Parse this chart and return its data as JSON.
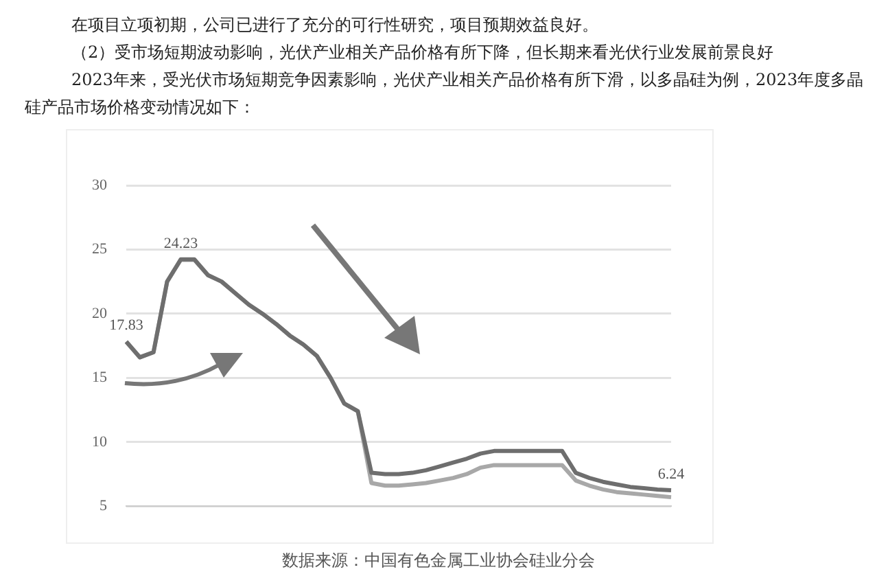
{
  "chart_data": {
    "type": "line",
    "annotations": [
      "在项目立项初期，公司已进行了充分的可行性研究，项目预期效益良好。",
      "（2）受市场短期波动影响，光伏产业相关产品价格有所下降，但长期来看光伏行业发展前景良好",
      "2023年来，受光伏市场短期竞争因素影响，光伏产业相关产品价格有所下滑，以多晶硅为例，2023年度多晶硅产品市场价格变动情况如下：",
      "数据来源：中国有色金属工业协会硅业分会"
    ],
    "categories": [
      null,
      null,
      null,
      null,
      null,
      null,
      null,
      null,
      null,
      null,
      null,
      null,
      null,
      null,
      null,
      null,
      null,
      null,
      null,
      null,
      null,
      null,
      null,
      null,
      null,
      null,
      null,
      null,
      null,
      null,
      null,
      null,
      null,
      null,
      null,
      null,
      null,
      null,
      null,
      null,
      null
    ],
    "series": [
      {
        "color": "#6e6e6e",
        "values": [
          17.83,
          16.6,
          17.0,
          22.5,
          24.23,
          24.23,
          23.0,
          22.5,
          21.6,
          20.7,
          20.0,
          19.2,
          18.3,
          17.6,
          16.7,
          15.0,
          13.0,
          12.4,
          7.6,
          7.5,
          7.5,
          7.6,
          7.8,
          8.1,
          8.4,
          8.7,
          9.1,
          9.3,
          9.3,
          9.3,
          9.3,
          9.3,
          9.3,
          7.6,
          7.2,
          6.9,
          6.7,
          6.5,
          6.4,
          6.3,
          6.24
        ],
        "value_labels": [
          "17.83",
          null,
          null,
          null,
          "24.23",
          null,
          null,
          null,
          null,
          null,
          null,
          null,
          null,
          null,
          null,
          null,
          null,
          null,
          null,
          null,
          null,
          null,
          null,
          null,
          null,
          null,
          null,
          null,
          null,
          null,
          null,
          null,
          null,
          null,
          null,
          null,
          null,
          null,
          null,
          null,
          "6.24"
        ]
      },
      {
        "color": "#a8a8a8",
        "values": [
          17.8,
          16.6,
          17.0,
          22.5,
          24.2,
          24.2,
          23.0,
          22.5,
          21.6,
          20.7,
          20.0,
          19.2,
          18.3,
          17.6,
          16.7,
          15.0,
          13.0,
          12.4,
          6.8,
          6.6,
          6.6,
          6.7,
          6.8,
          7.0,
          7.2,
          7.5,
          8.0,
          8.2,
          8.2,
          8.2,
          8.2,
          8.2,
          8.2,
          7.0,
          6.6,
          6.3,
          6.1,
          6.0,
          5.9,
          5.8,
          5.7
        ]
      }
    ],
    "ylim": [
      5,
      30
    ],
    "yticks": [
      5,
      10,
      15,
      20,
      25,
      30
    ],
    "grid": "y",
    "marker": "none",
    "line_style": "solid"
  }
}
